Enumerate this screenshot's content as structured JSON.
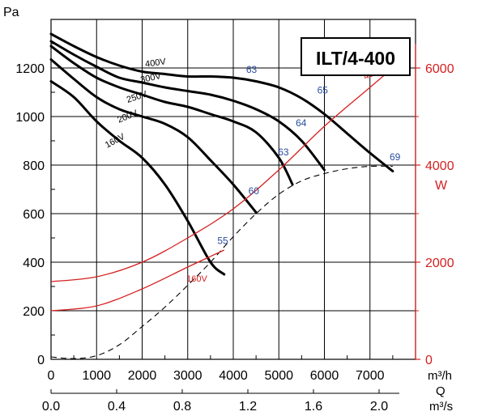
{
  "chart_data": {
    "type": "line",
    "title": "ILT/4-400",
    "xlabel": "Q",
    "xunit_primary": "m³/h",
    "xunit_secondary": "m³/s",
    "ylabel_left": "Pa",
    "ylabel_right": "W",
    "xlim": [
      0,
      8000
    ],
    "ylim_left": [
      0,
      1400
    ],
    "ylim_right": [
      0,
      7000
    ],
    "x_ticks": [
      "0",
      "1000",
      "2000",
      "3000",
      "4000",
      "5000",
      "6000",
      "7000"
    ],
    "x_ticks_secondary": [
      "0.0",
      "0.4",
      "0.8",
      "1.2",
      "1.6",
      "2.0"
    ],
    "y_ticks_left": [
      "0",
      "200",
      "400",
      "600",
      "800",
      "1000",
      "1200"
    ],
    "y_ticks_right": [
      "0",
      "2000",
      "4000",
      "6000"
    ],
    "pressure_curves": [
      {
        "name": "160V",
        "points": [
          [
            0,
            1145
          ],
          [
            500,
            1080
          ],
          [
            1000,
            980
          ],
          [
            1500,
            900
          ],
          [
            2000,
            830
          ],
          [
            2500,
            720
          ],
          [
            3000,
            570
          ],
          [
            3500,
            400
          ],
          [
            3800,
            350
          ]
        ]
      },
      {
        "name": "200V",
        "points": [
          [
            0,
            1235
          ],
          [
            500,
            1155
          ],
          [
            1000,
            1080
          ],
          [
            1500,
            1030
          ],
          [
            2000,
            1000
          ],
          [
            2500,
            970
          ],
          [
            3000,
            915
          ],
          [
            3500,
            820
          ],
          [
            4000,
            720
          ],
          [
            4500,
            605
          ]
        ]
      },
      {
        "name": "250V",
        "points": [
          [
            0,
            1290
          ],
          [
            500,
            1220
          ],
          [
            1000,
            1160
          ],
          [
            1500,
            1120
          ],
          [
            2000,
            1090
          ],
          [
            2500,
            1060
          ],
          [
            3000,
            1040
          ],
          [
            3500,
            1010
          ],
          [
            4000,
            980
          ],
          [
            4500,
            935
          ],
          [
            5000,
            830
          ],
          [
            5300,
            720
          ]
        ]
      },
      {
        "name": "300V",
        "points": [
          [
            0,
            1310
          ],
          [
            500,
            1255
          ],
          [
            1000,
            1205
          ],
          [
            1500,
            1160
          ],
          [
            2000,
            1140
          ],
          [
            2500,
            1120
          ],
          [
            3000,
            1105
          ],
          [
            3500,
            1090
          ],
          [
            4000,
            1065
          ],
          [
            4500,
            1030
          ],
          [
            5000,
            980
          ],
          [
            5500,
            900
          ],
          [
            6000,
            780
          ]
        ]
      },
      {
        "name": "400V",
        "points": [
          [
            0,
            1340
          ],
          [
            500,
            1290
          ],
          [
            1000,
            1245
          ],
          [
            1500,
            1210
          ],
          [
            2000,
            1185
          ],
          [
            2500,
            1175
          ],
          [
            3000,
            1165
          ],
          [
            3500,
            1165
          ],
          [
            4000,
            1160
          ],
          [
            4500,
            1145
          ],
          [
            5000,
            1120
          ],
          [
            5500,
            1075
          ],
          [
            6000,
            1010
          ],
          [
            6500,
            930
          ],
          [
            7000,
            850
          ],
          [
            7500,
            775
          ]
        ]
      }
    ],
    "system_curve": {
      "name": "system",
      "points": [
        [
          0,
          10
        ],
        [
          500,
          3
        ],
        [
          1000,
          15
        ],
        [
          1500,
          60
        ],
        [
          2000,
          135
        ],
        [
          2500,
          215
        ],
        [
          3000,
          305
        ],
        [
          3500,
          400
        ],
        [
          4000,
          505
        ],
        [
          4500,
          600
        ],
        [
          5000,
          680
        ],
        [
          5500,
          735
        ],
        [
          6000,
          765
        ],
        [
          6500,
          785
        ],
        [
          7000,
          795
        ],
        [
          7500,
          795
        ]
      ]
    },
    "power_curves": [
      {
        "name": "400V",
        "points": [
          [
            0,
            1600
          ],
          [
            1000,
            1700
          ],
          [
            2000,
            2000
          ],
          [
            3000,
            2500
          ],
          [
            4000,
            3100
          ],
          [
            5000,
            3900
          ],
          [
            6000,
            4800
          ],
          [
            7000,
            5600
          ],
          [
            7500,
            6000
          ]
        ]
      },
      {
        "name": "160V",
        "points": [
          [
            0,
            1000
          ],
          [
            1000,
            1100
          ],
          [
            2000,
            1450
          ],
          [
            3000,
            1900
          ],
          [
            3800,
            2250
          ]
        ]
      }
    ],
    "efficiency_labels": [
      {
        "text": "55",
        "x": 3770,
        "y": 475
      },
      {
        "text": "60",
        "x": 4450,
        "y": 680
      },
      {
        "text": "63",
        "x": 5100,
        "y": 840
      },
      {
        "text": "64",
        "x": 5490,
        "y": 960
      },
      {
        "text": "65",
        "x": 5960,
        "y": 1095
      },
      {
        "text": "63",
        "x": 4400,
        "y": 1180
      },
      {
        "text": "69",
        "x": 7550,
        "y": 820
      }
    ]
  },
  "legend": {
    "title": "ILT/4-400"
  }
}
